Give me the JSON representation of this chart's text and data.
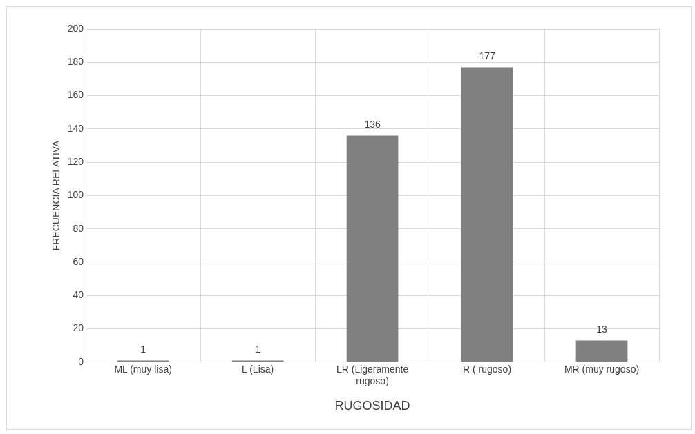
{
  "chart_data": {
    "type": "bar",
    "xlabel": "RUGOSIDAD",
    "ylabel": "FRECUENCIA RELATIVA",
    "categories": [
      "ML (muy lisa)",
      "L (Lisa)",
      "LR (Ligeramente rugoso)",
      "R ( rugoso)",
      "MR (muy rugoso)"
    ],
    "values": [
      1,
      1,
      136,
      177,
      13
    ],
    "color": "#808080",
    "ylim": [
      0,
      200
    ],
    "yticks": [
      0,
      20,
      40,
      60,
      80,
      100,
      120,
      140,
      160,
      180,
      200
    ],
    "grid": true,
    "data_labels": true,
    "legend": false
  }
}
